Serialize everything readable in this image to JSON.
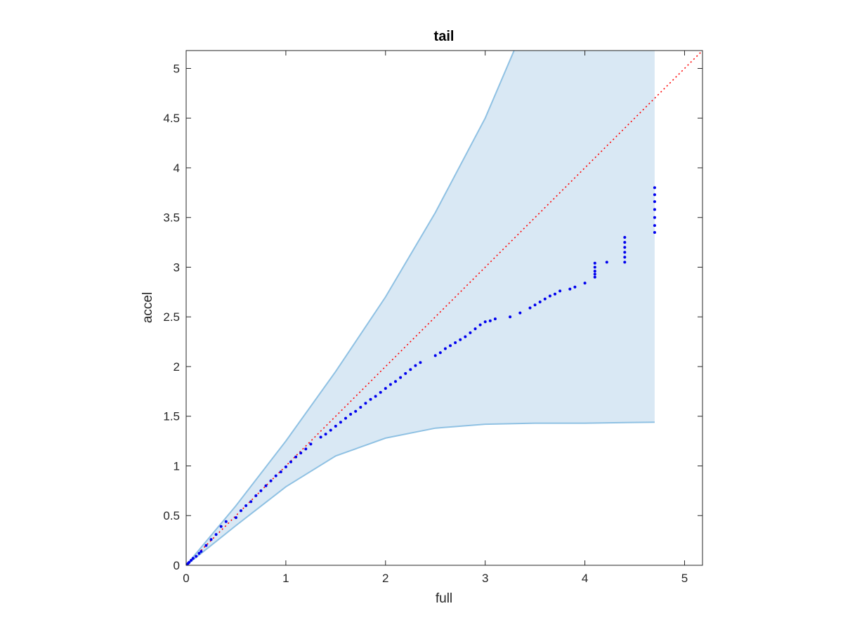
{
  "chart_data": {
    "type": "scatter",
    "title": "tail",
    "xlabel": "full",
    "ylabel": "accel",
    "xlim": [
      0,
      5.18
    ],
    "ylim": [
      0,
      5.18
    ],
    "x_ticks": [
      "0",
      "1",
      "2",
      "3",
      "4",
      "5"
    ],
    "y_ticks": [
      "0",
      "0.5",
      "1",
      "1.5",
      "2",
      "2.5",
      "3",
      "3.5",
      "4",
      "4.5",
      "5"
    ],
    "grid": false,
    "colors": {
      "band_fill": "#d9e8f4",
      "band_edge": "#8fc1e3",
      "points": "#0000ee",
      "reference_line": "#ff0000"
    },
    "reference_line": {
      "style": "dotted",
      "x": [
        0,
        5.18
      ],
      "y": [
        0,
        5.18
      ]
    },
    "band": {
      "x_end": 4.7,
      "upper": [
        [
          0,
          0
        ],
        [
          0.5,
          0.6
        ],
        [
          1,
          1.25
        ],
        [
          1.5,
          1.95
        ],
        [
          2,
          2.7
        ],
        [
          2.5,
          3.55
        ],
        [
          3,
          4.5
        ],
        [
          3.29,
          5.18
        ],
        [
          4.7,
          5.18
        ]
      ],
      "lower": [
        [
          0,
          0
        ],
        [
          0.25,
          0.2
        ],
        [
          0.5,
          0.4
        ],
        [
          1,
          0.79
        ],
        [
          1.5,
          1.1
        ],
        [
          2,
          1.28
        ],
        [
          2.5,
          1.38
        ],
        [
          3,
          1.42
        ],
        [
          3.5,
          1.43
        ],
        [
          4,
          1.43
        ],
        [
          4.7,
          1.44
        ]
      ]
    },
    "points": [
      [
        0.01,
        0.01
      ],
      [
        0.02,
        0.02
      ],
      [
        0.03,
        0.03
      ],
      [
        0.05,
        0.05
      ],
      [
        0.07,
        0.07
      ],
      [
        0.1,
        0.09
      ],
      [
        0.13,
        0.12
      ],
      [
        0.15,
        0.14
      ],
      [
        0.2,
        0.2
      ],
      [
        0.25,
        0.26
      ],
      [
        0.3,
        0.31
      ],
      [
        0.35,
        0.39
      ],
      [
        0.4,
        0.44
      ],
      [
        0.5,
        0.48
      ],
      [
        0.55,
        0.55
      ],
      [
        0.6,
        0.6
      ],
      [
        0.65,
        0.64
      ],
      [
        0.7,
        0.7
      ],
      [
        0.75,
        0.75
      ],
      [
        0.8,
        0.8
      ],
      [
        0.85,
        0.85
      ],
      [
        0.9,
        0.9
      ],
      [
        0.95,
        0.94
      ],
      [
        1.0,
        0.99
      ],
      [
        1.05,
        1.04
      ],
      [
        1.1,
        1.09
      ],
      [
        1.15,
        1.13
      ],
      [
        1.2,
        1.17
      ],
      [
        1.25,
        1.22
      ],
      [
        1.35,
        1.29
      ],
      [
        1.4,
        1.32
      ],
      [
        1.45,
        1.36
      ],
      [
        1.5,
        1.4
      ],
      [
        1.55,
        1.44
      ],
      [
        1.6,
        1.48
      ],
      [
        1.65,
        1.52
      ],
      [
        1.7,
        1.55
      ],
      [
        1.75,
        1.59
      ],
      [
        1.8,
        1.63
      ],
      [
        1.85,
        1.67
      ],
      [
        1.9,
        1.7
      ],
      [
        1.95,
        1.74
      ],
      [
        2.0,
        1.78
      ],
      [
        2.05,
        1.82
      ],
      [
        2.1,
        1.85
      ],
      [
        2.15,
        1.89
      ],
      [
        2.2,
        1.93
      ],
      [
        2.25,
        1.97
      ],
      [
        2.3,
        2.01
      ],
      [
        2.35,
        2.04
      ],
      [
        2.5,
        2.11
      ],
      [
        2.55,
        2.14
      ],
      [
        2.6,
        2.18
      ],
      [
        2.65,
        2.21
      ],
      [
        2.7,
        2.24
      ],
      [
        2.75,
        2.27
      ],
      [
        2.8,
        2.3
      ],
      [
        2.85,
        2.34
      ],
      [
        2.9,
        2.38
      ],
      [
        2.95,
        2.42
      ],
      [
        3.0,
        2.45
      ],
      [
        3.05,
        2.46
      ],
      [
        3.1,
        2.48
      ],
      [
        3.25,
        2.5
      ],
      [
        3.35,
        2.54
      ],
      [
        3.45,
        2.59
      ],
      [
        3.5,
        2.62
      ],
      [
        3.55,
        2.65
      ],
      [
        3.6,
        2.68
      ],
      [
        3.65,
        2.71
      ],
      [
        3.7,
        2.73
      ],
      [
        3.75,
        2.76
      ],
      [
        3.85,
        2.78
      ],
      [
        3.9,
        2.8
      ],
      [
        4.0,
        2.84
      ],
      [
        4.1,
        2.9
      ],
      [
        4.1,
        2.93
      ],
      [
        4.1,
        2.96
      ],
      [
        4.1,
        3.0
      ],
      [
        4.1,
        3.04
      ],
      [
        4.22,
        3.05
      ],
      [
        4.4,
        3.05
      ],
      [
        4.4,
        3.1
      ],
      [
        4.4,
        3.15
      ],
      [
        4.4,
        3.2
      ],
      [
        4.4,
        3.25
      ],
      [
        4.4,
        3.3
      ],
      [
        4.7,
        3.35
      ],
      [
        4.7,
        3.42
      ],
      [
        4.7,
        3.5
      ],
      [
        4.7,
        3.58
      ],
      [
        4.7,
        3.66
      ],
      [
        4.7,
        3.73
      ],
      [
        4.7,
        3.8
      ]
    ]
  }
}
